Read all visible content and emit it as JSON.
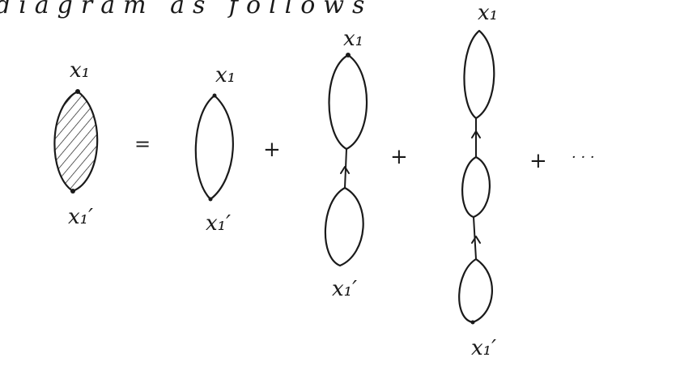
{
  "header": {
    "text": "diagram as follows"
  },
  "labels": {
    "x1": "x₁",
    "x1_prime": "x₁′",
    "equals": "=",
    "plus": "+",
    "ellipsis": "· · ·"
  },
  "colors": {
    "ink": "#1a1a1a",
    "background": "#ffffff"
  }
}
